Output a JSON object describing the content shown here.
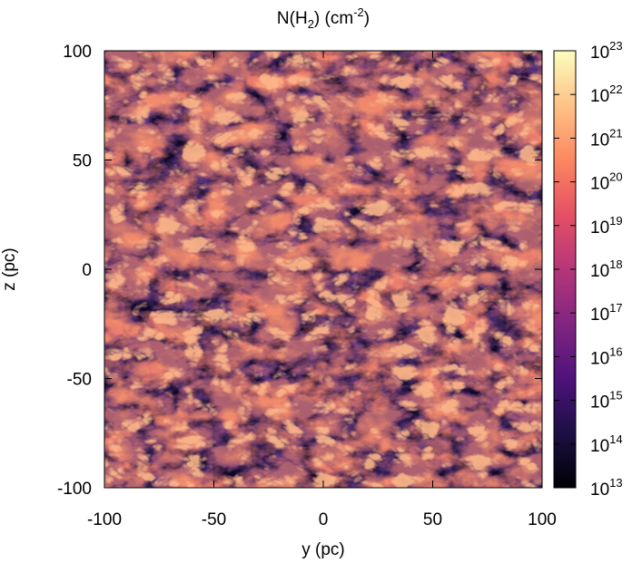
{
  "chart_data": {
    "type": "heatmap",
    "title_main": "N(H",
    "title_sub": "2",
    "title_unit_pre": ")  (cm",
    "title_unit_sup": "-2",
    "title_unit_post": ")",
    "xlabel": "y (pc)",
    "ylabel": "z (pc)",
    "xlim": [
      -100,
      100
    ],
    "ylim": [
      -100,
      100
    ],
    "x_ticks": [
      "-100",
      "-50",
      "0",
      "50",
      "100"
    ],
    "x_tick_values": [
      -100,
      -50,
      0,
      50,
      100
    ],
    "y_ticks": [
      "100",
      "50",
      "0",
      "-50",
      "-100"
    ],
    "y_tick_values": [
      100,
      50,
      0,
      -50,
      -100
    ],
    "colorbar": {
      "scale": "log",
      "range_exponents": [
        13,
        23
      ],
      "tick_base": "10",
      "tick_exponents": [
        "23",
        "22",
        "21",
        "20",
        "19",
        "18",
        "17",
        "16",
        "15",
        "14",
        "13"
      ],
      "colormap_stops": [
        "#000004",
        "#1c1044",
        "#4f127b",
        "#812581",
        "#b5367a",
        "#e55064",
        "#fb8761",
        "#fec287",
        "#fcfdbf"
      ]
    },
    "grid": false
  }
}
